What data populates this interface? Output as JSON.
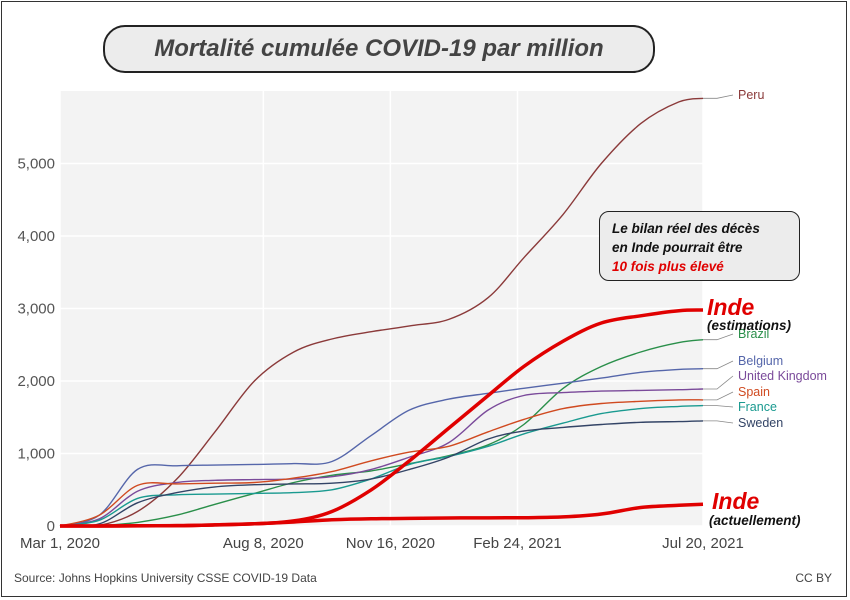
{
  "title": "Mortalité cumulée COVID-19 par million",
  "source": "Source: Johns Hopkins University CSSE COVID-19 Data",
  "license": "CC BY",
  "callout": {
    "line1": "Le bilan réel des décès",
    "line2": "en Inde pourrait être",
    "line3": "10 fois plus élevé"
  },
  "inde_labels": {
    "estimate_name": "Inde",
    "estimate_sub": "(estimations)",
    "actual_name": "Inde",
    "actual_sub": "(actuellement)"
  },
  "chart_data": {
    "type": "line",
    "title": "Mortalité cumulée COVID-19 par million",
    "xlabel": "",
    "ylabel": "",
    "x_ticks": [
      "Mar 1, 2020",
      "Aug 8, 2020",
      "Nov 16, 2020",
      "Feb 24, 2021",
      "Jul 20, 2021"
    ],
    "y_ticks": [
      "0",
      "1,000",
      "2,000",
      "3,000",
      "4,000",
      "5,000"
    ],
    "ylim": [
      0,
      6000
    ],
    "x_range": [
      "2020-03-01",
      "2021-07-20"
    ],
    "grid": true,
    "x": [
      "2020-03-01",
      "2020-04-01",
      "2020-05-01",
      "2020-06-01",
      "2020-07-01",
      "2020-08-01",
      "2020-09-01",
      "2020-10-01",
      "2020-11-01",
      "2020-12-01",
      "2021-01-01",
      "2021-02-01",
      "2021-03-01",
      "2021-04-01",
      "2021-05-01",
      "2021-06-01",
      "2021-07-01",
      "2021-07-20"
    ],
    "series": [
      {
        "name": "Peru",
        "color": "#8b3a3a",
        "values": [
          0,
          10,
          200,
          650,
          1300,
          2000,
          2400,
          2580,
          2680,
          2760,
          2850,
          3150,
          3700,
          4300,
          5000,
          5550,
          5850,
          5900
        ]
      },
      {
        "name": "Brazil",
        "color": "#2a8f4a",
        "values": [
          0,
          5,
          50,
          150,
          300,
          450,
          600,
          700,
          760,
          860,
          970,
          1120,
          1400,
          1900,
          2200,
          2400,
          2530,
          2570
        ]
      },
      {
        "name": "Belgium",
        "color": "#5566aa",
        "values": [
          0,
          150,
          780,
          830,
          840,
          850,
          860,
          890,
          1250,
          1600,
          1750,
          1830,
          1900,
          1970,
          2040,
          2120,
          2160,
          2170
        ]
      },
      {
        "name": "United Kingdom",
        "color": "#7a4a9a",
        "values": [
          0,
          100,
          480,
          600,
          630,
          640,
          650,
          680,
          780,
          950,
          1150,
          1600,
          1800,
          1840,
          1860,
          1870,
          1880,
          1890
        ]
      },
      {
        "name": "Spain",
        "color": "#d04a20",
        "values": [
          0,
          150,
          560,
          580,
          590,
          600,
          660,
          750,
          900,
          1020,
          1100,
          1300,
          1470,
          1620,
          1690,
          1720,
          1740,
          1740
        ]
      },
      {
        "name": "France",
        "color": "#1a9a90",
        "values": [
          0,
          80,
          380,
          430,
          440,
          450,
          460,
          500,
          650,
          850,
          960,
          1100,
          1270,
          1420,
          1550,
          1620,
          1650,
          1660
        ]
      },
      {
        "name": "Sweden",
        "color": "#334466",
        "values": [
          0,
          30,
          320,
          460,
          540,
          570,
          580,
          590,
          650,
          780,
          950,
          1200,
          1310,
          1360,
          1400,
          1430,
          1440,
          1450
        ]
      },
      {
        "name": "Inde",
        "color": "#e00000",
        "values": [
          0,
          0,
          2,
          5,
          15,
          30,
          70,
          200,
          500,
          900,
          1350,
          1800,
          2200,
          2550,
          2800,
          2900,
          2970,
          2980
        ]
      },
      {
        "name": "Inde",
        "color": "#e00000",
        "values": [
          0,
          0,
          3,
          5,
          15,
          30,
          55,
          85,
          100,
          105,
          110,
          112,
          115,
          125,
          165,
          255,
          285,
          300
        ]
      }
    ]
  }
}
